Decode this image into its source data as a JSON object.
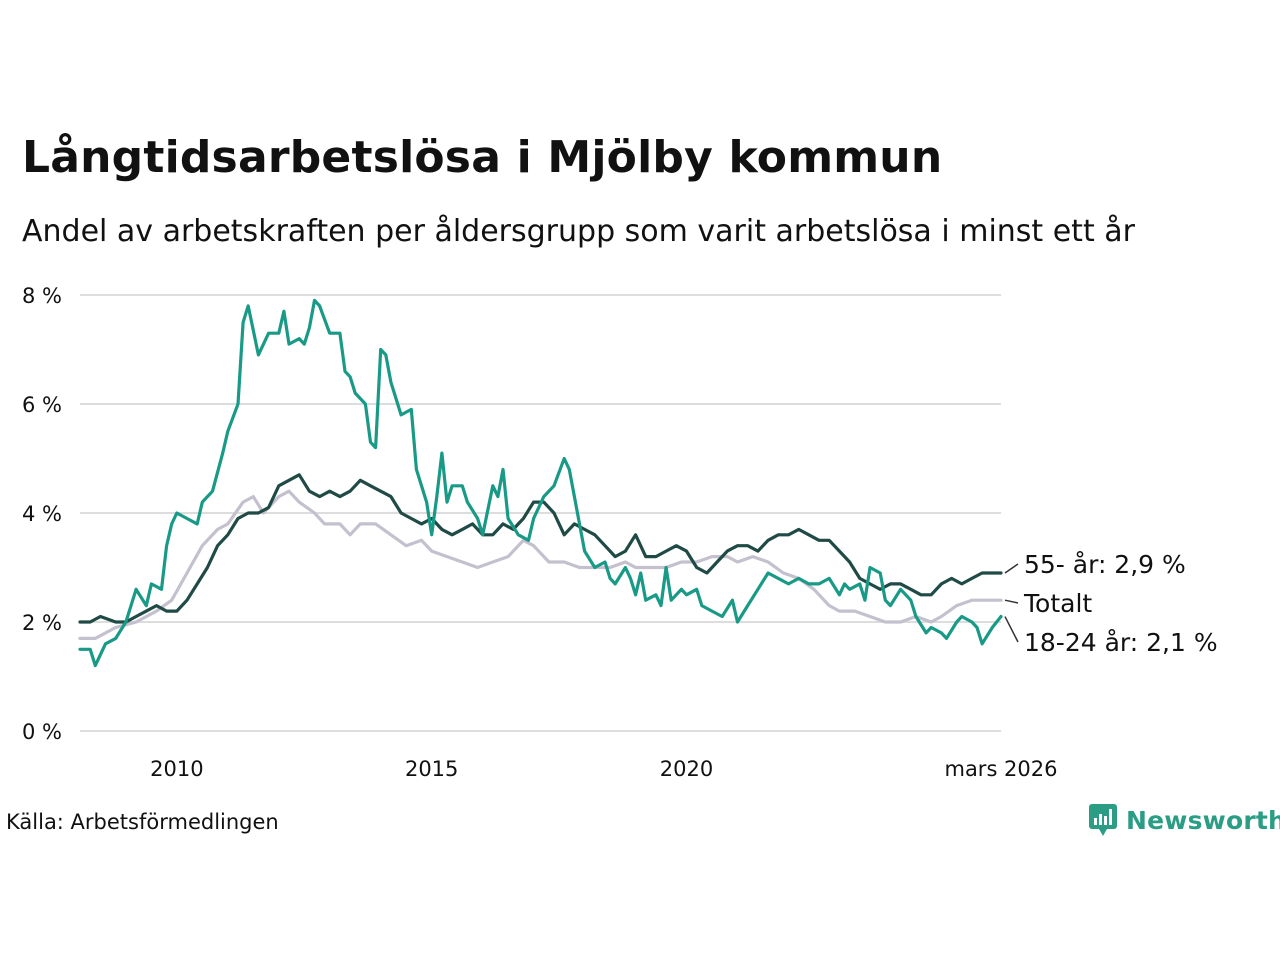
{
  "title": "Långtidsarbetslösa i Mjölby kommun",
  "subtitle": "Andel av arbetskraften per åldersgrupp som varit arbetslösa i minst ett år",
  "source": "Källa: Arbetsförmedlingen",
  "brand": "Newsworthy",
  "colors": {
    "older": "#1f4a45",
    "total": "#c4c0ce",
    "young": "#199a86",
    "grid": "#dddddd",
    "brand": "#2a9d84"
  },
  "chart_data": {
    "type": "line",
    "title": "Långtidsarbetslösa i Mjölby kommun",
    "xlabel": "",
    "ylabel": "",
    "ylim": [
      0,
      8
    ],
    "xlim": [
      2008.1,
      2026.17
    ],
    "y_ticks": [
      0,
      2,
      4,
      6,
      8
    ],
    "y_tick_labels": [
      "0 %",
      "2 %",
      "4 %",
      "6 %",
      "8 %"
    ],
    "x_ticks": [
      2010,
      2015,
      2020,
      2026.17
    ],
    "x_tick_labels": [
      "2010",
      "2015",
      "2020",
      "mars 2026"
    ],
    "series": [
      {
        "name": "Totalt",
        "label": "Totalt",
        "color": "#c4c0ce",
        "points": [
          [
            2008.1,
            1.7
          ],
          [
            2008.4,
            1.7
          ],
          [
            2008.8,
            1.9
          ],
          [
            2009.2,
            2.0
          ],
          [
            2009.6,
            2.2
          ],
          [
            2009.9,
            2.4
          ],
          [
            2010.2,
            2.9
          ],
          [
            2010.5,
            3.4
          ],
          [
            2010.8,
            3.7
          ],
          [
            2011.0,
            3.8
          ],
          [
            2011.3,
            4.2
          ],
          [
            2011.5,
            4.3
          ],
          [
            2011.7,
            4.0
          ],
          [
            2012.0,
            4.3
          ],
          [
            2012.2,
            4.4
          ],
          [
            2012.4,
            4.2
          ],
          [
            2012.7,
            4.0
          ],
          [
            2012.9,
            3.8
          ],
          [
            2013.2,
            3.8
          ],
          [
            2013.4,
            3.6
          ],
          [
            2013.6,
            3.8
          ],
          [
            2013.9,
            3.8
          ],
          [
            2014.2,
            3.6
          ],
          [
            2014.5,
            3.4
          ],
          [
            2014.8,
            3.5
          ],
          [
            2015.0,
            3.3
          ],
          [
            2015.3,
            3.2
          ],
          [
            2015.6,
            3.1
          ],
          [
            2015.9,
            3.0
          ],
          [
            2016.2,
            3.1
          ],
          [
            2016.5,
            3.2
          ],
          [
            2016.8,
            3.5
          ],
          [
            2017.0,
            3.4
          ],
          [
            2017.3,
            3.1
          ],
          [
            2017.6,
            3.1
          ],
          [
            2017.9,
            3.0
          ],
          [
            2018.2,
            3.0
          ],
          [
            2018.5,
            3.0
          ],
          [
            2018.8,
            3.1
          ],
          [
            2019.0,
            3.0
          ],
          [
            2019.3,
            3.0
          ],
          [
            2019.6,
            3.0
          ],
          [
            2019.9,
            3.1
          ],
          [
            2020.2,
            3.1
          ],
          [
            2020.5,
            3.2
          ],
          [
            2020.8,
            3.2
          ],
          [
            2021.0,
            3.1
          ],
          [
            2021.3,
            3.2
          ],
          [
            2021.6,
            3.1
          ],
          [
            2021.9,
            2.9
          ],
          [
            2022.2,
            2.8
          ],
          [
            2022.5,
            2.6
          ],
          [
            2022.8,
            2.3
          ],
          [
            2023.0,
            2.2
          ],
          [
            2023.3,
            2.2
          ],
          [
            2023.6,
            2.1
          ],
          [
            2023.9,
            2.0
          ],
          [
            2024.2,
            2.0
          ],
          [
            2024.5,
            2.1
          ],
          [
            2024.8,
            2.0
          ],
          [
            2025.0,
            2.1
          ],
          [
            2025.3,
            2.3
          ],
          [
            2025.6,
            2.4
          ],
          [
            2025.9,
            2.4
          ],
          [
            2026.17,
            2.4
          ]
        ]
      },
      {
        "name": "55- år",
        "label": "55- år: 2,9 %",
        "color": "#1f4a45",
        "points": [
          [
            2008.1,
            2.0
          ],
          [
            2008.3,
            2.0
          ],
          [
            2008.5,
            2.1
          ],
          [
            2008.8,
            2.0
          ],
          [
            2009.0,
            2.0
          ],
          [
            2009.2,
            2.1
          ],
          [
            2009.4,
            2.2
          ],
          [
            2009.6,
            2.3
          ],
          [
            2009.8,
            2.2
          ],
          [
            2010.0,
            2.2
          ],
          [
            2010.2,
            2.4
          ],
          [
            2010.4,
            2.7
          ],
          [
            2010.6,
            3.0
          ],
          [
            2010.8,
            3.4
          ],
          [
            2011.0,
            3.6
          ],
          [
            2011.2,
            3.9
          ],
          [
            2011.4,
            4.0
          ],
          [
            2011.6,
            4.0
          ],
          [
            2011.8,
            4.1
          ],
          [
            2012.0,
            4.5
          ],
          [
            2012.2,
            4.6
          ],
          [
            2012.4,
            4.7
          ],
          [
            2012.6,
            4.4
          ],
          [
            2012.8,
            4.3
          ],
          [
            2013.0,
            4.4
          ],
          [
            2013.2,
            4.3
          ],
          [
            2013.4,
            4.4
          ],
          [
            2013.6,
            4.6
          ],
          [
            2013.8,
            4.5
          ],
          [
            2014.0,
            4.4
          ],
          [
            2014.2,
            4.3
          ],
          [
            2014.4,
            4.0
          ],
          [
            2014.6,
            3.9
          ],
          [
            2014.8,
            3.8
          ],
          [
            2015.0,
            3.9
          ],
          [
            2015.2,
            3.7
          ],
          [
            2015.4,
            3.6
          ],
          [
            2015.6,
            3.7
          ],
          [
            2015.8,
            3.8
          ],
          [
            2016.0,
            3.6
          ],
          [
            2016.2,
            3.6
          ],
          [
            2016.4,
            3.8
          ],
          [
            2016.6,
            3.7
          ],
          [
            2016.8,
            3.9
          ],
          [
            2017.0,
            4.2
          ],
          [
            2017.2,
            4.2
          ],
          [
            2017.4,
            4.0
          ],
          [
            2017.6,
            3.6
          ],
          [
            2017.8,
            3.8
          ],
          [
            2018.0,
            3.7
          ],
          [
            2018.2,
            3.6
          ],
          [
            2018.4,
            3.4
          ],
          [
            2018.6,
            3.2
          ],
          [
            2018.8,
            3.3
          ],
          [
            2019.0,
            3.6
          ],
          [
            2019.2,
            3.2
          ],
          [
            2019.4,
            3.2
          ],
          [
            2019.6,
            3.3
          ],
          [
            2019.8,
            3.4
          ],
          [
            2020.0,
            3.3
          ],
          [
            2020.2,
            3.0
          ],
          [
            2020.4,
            2.9
          ],
          [
            2020.6,
            3.1
          ],
          [
            2020.8,
            3.3
          ],
          [
            2021.0,
            3.4
          ],
          [
            2021.2,
            3.4
          ],
          [
            2021.4,
            3.3
          ],
          [
            2021.6,
            3.5
          ],
          [
            2021.8,
            3.6
          ],
          [
            2022.0,
            3.6
          ],
          [
            2022.2,
            3.7
          ],
          [
            2022.4,
            3.6
          ],
          [
            2022.6,
            3.5
          ],
          [
            2022.8,
            3.5
          ],
          [
            2023.0,
            3.3
          ],
          [
            2023.2,
            3.1
          ],
          [
            2023.4,
            2.8
          ],
          [
            2023.6,
            2.7
          ],
          [
            2023.8,
            2.6
          ],
          [
            2024.0,
            2.7
          ],
          [
            2024.2,
            2.7
          ],
          [
            2024.4,
            2.6
          ],
          [
            2024.6,
            2.5
          ],
          [
            2024.8,
            2.5
          ],
          [
            2025.0,
            2.7
          ],
          [
            2025.2,
            2.8
          ],
          [
            2025.4,
            2.7
          ],
          [
            2025.6,
            2.8
          ],
          [
            2025.8,
            2.9
          ],
          [
            2026.0,
            2.9
          ],
          [
            2026.17,
            2.9
          ]
        ]
      },
      {
        "name": "18-24 år",
        "label": "18-24 år: 2,1 %",
        "color": "#199a86",
        "points": [
          [
            2008.1,
            1.5
          ],
          [
            2008.3,
            1.5
          ],
          [
            2008.4,
            1.2
          ],
          [
            2008.6,
            1.6
          ],
          [
            2008.8,
            1.7
          ],
          [
            2009.0,
            2.0
          ],
          [
            2009.2,
            2.6
          ],
          [
            2009.4,
            2.3
          ],
          [
            2009.5,
            2.7
          ],
          [
            2009.7,
            2.6
          ],
          [
            2009.8,
            3.4
          ],
          [
            2009.9,
            3.8
          ],
          [
            2010.0,
            4.0
          ],
          [
            2010.2,
            3.9
          ],
          [
            2010.4,
            3.8
          ],
          [
            2010.5,
            4.2
          ],
          [
            2010.7,
            4.4
          ],
          [
            2010.9,
            5.1
          ],
          [
            2011.0,
            5.5
          ],
          [
            2011.2,
            6.0
          ],
          [
            2011.3,
            7.5
          ],
          [
            2011.4,
            7.8
          ],
          [
            2011.6,
            6.9
          ],
          [
            2011.8,
            7.3
          ],
          [
            2012.0,
            7.3
          ],
          [
            2012.1,
            7.7
          ],
          [
            2012.2,
            7.1
          ],
          [
            2012.4,
            7.2
          ],
          [
            2012.5,
            7.1
          ],
          [
            2012.6,
            7.4
          ],
          [
            2012.7,
            7.9
          ],
          [
            2012.8,
            7.8
          ],
          [
            2013.0,
            7.3
          ],
          [
            2013.2,
            7.3
          ],
          [
            2013.3,
            6.6
          ],
          [
            2013.4,
            6.5
          ],
          [
            2013.5,
            6.2
          ],
          [
            2013.7,
            6.0
          ],
          [
            2013.8,
            5.3
          ],
          [
            2013.9,
            5.2
          ],
          [
            2014.0,
            7.0
          ],
          [
            2014.1,
            6.9
          ],
          [
            2014.2,
            6.4
          ],
          [
            2014.4,
            5.8
          ],
          [
            2014.6,
            5.9
          ],
          [
            2014.7,
            4.8
          ],
          [
            2014.9,
            4.2
          ],
          [
            2015.0,
            3.6
          ],
          [
            2015.1,
            4.3
          ],
          [
            2015.2,
            5.1
          ],
          [
            2015.3,
            4.2
          ],
          [
            2015.4,
            4.5
          ],
          [
            2015.6,
            4.5
          ],
          [
            2015.7,
            4.2
          ],
          [
            2015.9,
            3.9
          ],
          [
            2016.0,
            3.6
          ],
          [
            2016.2,
            4.5
          ],
          [
            2016.3,
            4.3
          ],
          [
            2016.4,
            4.8
          ],
          [
            2016.5,
            3.9
          ],
          [
            2016.7,
            3.6
          ],
          [
            2016.9,
            3.5
          ],
          [
            2017.0,
            3.9
          ],
          [
            2017.2,
            4.3
          ],
          [
            2017.4,
            4.5
          ],
          [
            2017.6,
            5.0
          ],
          [
            2017.7,
            4.8
          ],
          [
            2017.9,
            3.8
          ],
          [
            2018.0,
            3.3
          ],
          [
            2018.2,
            3.0
          ],
          [
            2018.4,
            3.1
          ],
          [
            2018.5,
            2.8
          ],
          [
            2018.6,
            2.7
          ],
          [
            2018.8,
            3.0
          ],
          [
            2018.9,
            2.8
          ],
          [
            2019.0,
            2.5
          ],
          [
            2019.1,
            2.9
          ],
          [
            2019.2,
            2.4
          ],
          [
            2019.4,
            2.5
          ],
          [
            2019.5,
            2.3
          ],
          [
            2019.6,
            3.0
          ],
          [
            2019.7,
            2.4
          ],
          [
            2019.9,
            2.6
          ],
          [
            2020.0,
            2.5
          ],
          [
            2020.2,
            2.6
          ],
          [
            2020.3,
            2.3
          ],
          [
            2020.5,
            2.2
          ],
          [
            2020.7,
            2.1
          ],
          [
            2020.9,
            2.4
          ],
          [
            2021.0,
            2.0
          ],
          [
            2021.2,
            2.3
          ],
          [
            2021.4,
            2.6
          ],
          [
            2021.6,
            2.9
          ],
          [
            2021.8,
            2.8
          ],
          [
            2022.0,
            2.7
          ],
          [
            2022.2,
            2.8
          ],
          [
            2022.4,
            2.7
          ],
          [
            2022.6,
            2.7
          ],
          [
            2022.8,
            2.8
          ],
          [
            2023.0,
            2.5
          ],
          [
            2023.1,
            2.7
          ],
          [
            2023.2,
            2.6
          ],
          [
            2023.4,
            2.7
          ],
          [
            2023.5,
            2.4
          ],
          [
            2023.6,
            3.0
          ],
          [
            2023.8,
            2.9
          ],
          [
            2023.9,
            2.4
          ],
          [
            2024.0,
            2.3
          ],
          [
            2024.2,
            2.6
          ],
          [
            2024.4,
            2.4
          ],
          [
            2024.5,
            2.1
          ],
          [
            2024.7,
            1.8
          ],
          [
            2024.8,
            1.9
          ],
          [
            2025.0,
            1.8
          ],
          [
            2025.1,
            1.7
          ],
          [
            2025.3,
            2.0
          ],
          [
            2025.4,
            2.1
          ],
          [
            2025.6,
            2.0
          ],
          [
            2025.7,
            1.9
          ],
          [
            2025.8,
            1.6
          ],
          [
            2026.0,
            1.9
          ],
          [
            2026.17,
            2.1
          ]
        ]
      }
    ]
  }
}
